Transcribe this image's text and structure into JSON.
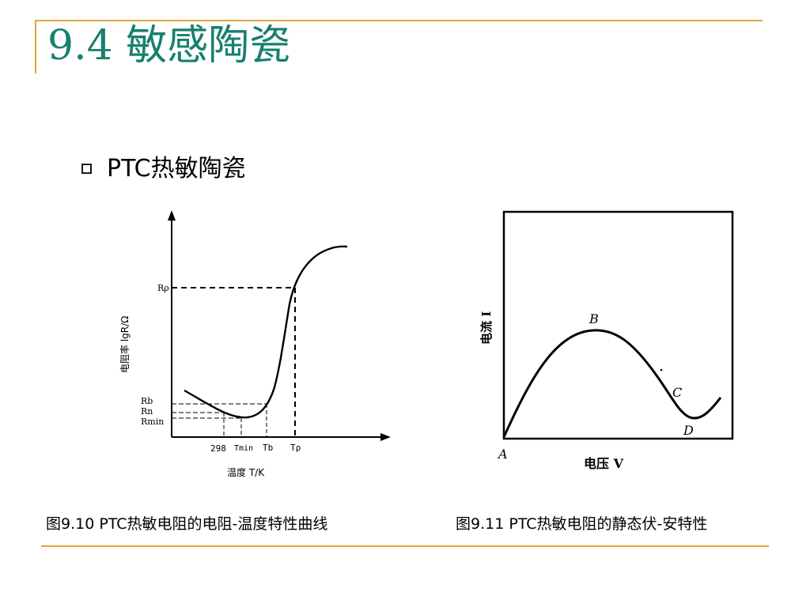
{
  "title": "9.4 敏感陶瓷",
  "bullet": "PTC热敏陶瓷",
  "figure1": {
    "y_axis_label": "电阻率 lgR/Ω",
    "x_axis_label": "温度 T/K",
    "y_ticks": {
      "r_rho": "Rρ",
      "r_b": "Rb",
      "r_n": "Rn",
      "r_min": "Rmin"
    },
    "x_ticks": {
      "t_298": "298",
      "t_min": "Tmin",
      "t_b": "Tb",
      "t_rho": "Tρ"
    },
    "caption": "图9.10  PTC热敏电阻的电阻-温度特性曲线"
  },
  "figure2": {
    "y_axis_label": "电流 I",
    "x_axis_label": "电压 V",
    "points": {
      "a": "A",
      "b": "B",
      "c": "C",
      "d": "D"
    },
    "caption": "图9.11  PTC热敏电阻的静态伏-安特性"
  }
}
